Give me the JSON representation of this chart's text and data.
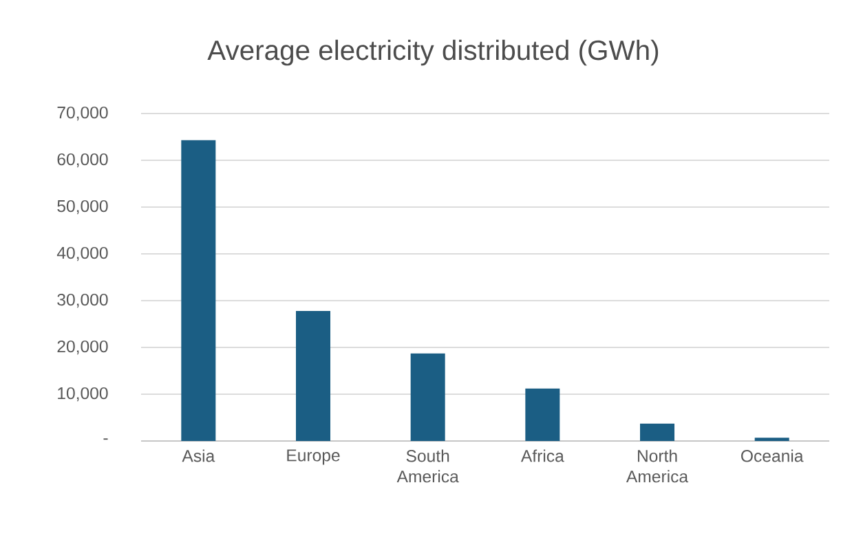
{
  "chart_data": {
    "type": "bar",
    "title": "Average  electricity distributed (GWh)",
    "categories": [
      "Asia",
      "Europe",
      "South America",
      "Africa",
      "North America",
      "Oceania"
    ],
    "values": [
      64300,
      27800,
      18700,
      11200,
      3700,
      700
    ],
    "color": "#1b5e84",
    "ylim": [
      0,
      70000
    ],
    "yticks": [
      {
        "value": 0,
        "label": "-"
      },
      {
        "value": 10000,
        "label": "10,000"
      },
      {
        "value": 20000,
        "label": "20,000"
      },
      {
        "value": 30000,
        "label": "30,000"
      },
      {
        "value": 40000,
        "label": "40,000"
      },
      {
        "value": 50000,
        "label": "50,000"
      },
      {
        "value": 60000,
        "label": "60,000"
      },
      {
        "value": 70000,
        "label": "70,000"
      }
    ],
    "grid": "y"
  }
}
